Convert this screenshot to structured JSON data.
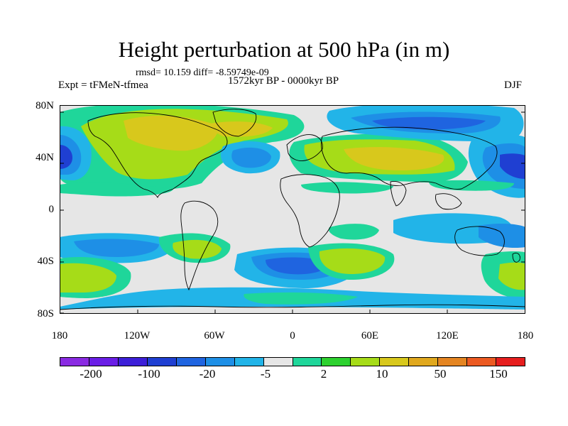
{
  "header": {
    "title": "Height perturbation at 500 hPa (in m)",
    "stats": "rmsd= 10.159 diff= -8.59749e-09",
    "period": "1572kyr BP - 0000kyr BP",
    "experiment": "Expt = tFMeN-tfmea",
    "season": "DJF"
  },
  "axes": {
    "lat_labels": [
      "80N",
      "40N",
      "0",
      "40S",
      "80S"
    ],
    "lon_labels": [
      "180",
      "120W",
      "60W",
      "0",
      "60E",
      "120E",
      "180"
    ]
  },
  "colorbar": {
    "labels": [
      "-200",
      "-100",
      "-20",
      "-5",
      "2",
      "10",
      "50",
      "150"
    ],
    "colors": [
      "#8a2be2",
      "#6a1ee6",
      "#3c1fd8",
      "#1f3fd2",
      "#1f64e0",
      "#1e8fe6",
      "#22b4e8",
      "#e6e6e6",
      "#1fd69a",
      "#2dd12f",
      "#a6dc18",
      "#d8c81c",
      "#e0a81e",
      "#e48522",
      "#ec5a22",
      "#e61e1e"
    ]
  },
  "map": {
    "ocean_color": "#e6e6e6",
    "coast_color": "#000000"
  }
}
